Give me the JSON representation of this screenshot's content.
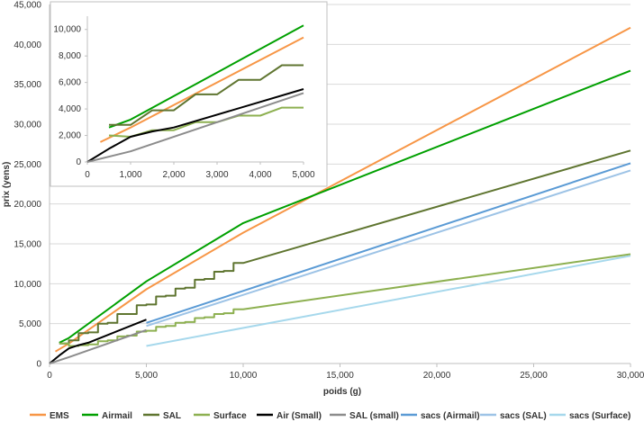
{
  "chart_data": [
    {
      "type": "line",
      "title": "",
      "xlabel": "poids (g)",
      "ylabel": "prix (yens)",
      "xlim": [
        0,
        30000
      ],
      "ylim": [
        0,
        45000
      ],
      "xticks": [
        0,
        5000,
        10000,
        15000,
        20000,
        25000,
        30000
      ],
      "yticks": [
        0,
        5000,
        10000,
        15000,
        20000,
        25000,
        30000,
        35000,
        40000,
        45000
      ],
      "xtick_labels": [
        "0",
        "5,000",
        "10,000",
        "15,000",
        "20,000",
        "25,000",
        "30,000"
      ],
      "ytick_labels": [
        "0",
        "5,000",
        "10,000",
        "15,000",
        "20,000",
        "25,000",
        "30,000",
        "35,000",
        "40,000",
        "45,000"
      ],
      "grid": "horizontal",
      "legend_position": "bottom",
      "series": [
        {
          "name": "EMS",
          "color": "#f79646",
          "points": [
            [
              300,
              1500
            ],
            [
              1000,
              2500
            ],
            [
              5000,
              9300
            ],
            [
              10000,
              16400
            ],
            [
              30000,
              42100
            ]
          ]
        },
        {
          "name": "Airmail",
          "color": "#00a000",
          "points": [
            [
              500,
              2600
            ],
            [
              1000,
              3200
            ],
            [
              5000,
              10300
            ],
            [
              10000,
              17600
            ],
            [
              30000,
              36700
            ]
          ]
        },
        {
          "name": "SAL",
          "color": "#5f7530",
          "points": [
            [
              500,
              2500
            ],
            [
              1000,
              2500
            ],
            [
              1000,
              2900
            ],
            [
              1500,
              2900
            ],
            [
              1500,
              3800
            ],
            [
              2000,
              3800
            ],
            [
              2000,
              3900
            ],
            [
              2500,
              3900
            ],
            [
              2500,
              5000
            ],
            [
              3000,
              5000
            ],
            [
              3000,
              5100
            ],
            [
              3500,
              5100
            ],
            [
              3500,
              6200
            ],
            [
              4000,
              6200
            ],
            [
              4000,
              6200
            ],
            [
              4500,
              6200
            ],
            [
              4500,
              7300
            ],
            [
              5000,
              7300
            ],
            [
              5000,
              7400
            ],
            [
              5500,
              7400
            ],
            [
              5500,
              8400
            ],
            [
              6000,
              8400
            ],
            [
              6000,
              8500
            ],
            [
              6500,
              8500
            ],
            [
              6500,
              9400
            ],
            [
              7000,
              9400
            ],
            [
              7000,
              9500
            ],
            [
              7500,
              9500
            ],
            [
              7500,
              10500
            ],
            [
              8000,
              10500
            ],
            [
              8000,
              10600
            ],
            [
              8500,
              10600
            ],
            [
              8500,
              11500
            ],
            [
              9000,
              11500
            ],
            [
              9000,
              11600
            ],
            [
              9500,
              11600
            ],
            [
              9500,
              12600
            ],
            [
              10000,
              12600
            ],
            [
              30000,
              26700
            ]
          ]
        },
        {
          "name": "Surface",
          "color": "#8db050",
          "points": [
            [
              500,
              2500
            ],
            [
              1000,
              2500
            ],
            [
              1000,
              2200
            ],
            [
              1500,
              2200
            ],
            [
              1500,
              2300
            ],
            [
              2000,
              2300
            ],
            [
              2000,
              2400
            ],
            [
              2500,
              2400
            ],
            [
              2500,
              2800
            ],
            [
              3000,
              2800
            ],
            [
              3000,
              2900
            ],
            [
              3500,
              2900
            ],
            [
              3500,
              3400
            ],
            [
              4000,
              3400
            ],
            [
              4000,
              3500
            ],
            [
              4500,
              3500
            ],
            [
              4500,
              4000
            ],
            [
              5000,
              4000
            ],
            [
              5000,
              4100
            ],
            [
              5500,
              4100
            ],
            [
              5500,
              4600
            ],
            [
              6000,
              4600
            ],
            [
              6000,
              4700
            ],
            [
              6500,
              4700
            ],
            [
              6500,
              5100
            ],
            [
              7000,
              5100
            ],
            [
              7000,
              5200
            ],
            [
              7500,
              5200
            ],
            [
              7500,
              5700
            ],
            [
              8000,
              5700
            ],
            [
              8000,
              5800
            ],
            [
              8500,
              5800
            ],
            [
              8500,
              6200
            ],
            [
              9000,
              6200
            ],
            [
              9000,
              6300
            ],
            [
              9500,
              6300
            ],
            [
              9500,
              6800
            ],
            [
              10000,
              6800
            ],
            [
              30000,
              13700
            ]
          ]
        },
        {
          "name": "Air (Small)",
          "color": "#000000",
          "points": [
            [
              0,
              0
            ],
            [
              500,
              1000
            ],
            [
              1000,
              1900
            ],
            [
              1500,
              2300
            ],
            [
              2000,
              2600
            ],
            [
              5000,
              5500
            ]
          ]
        },
        {
          "name": "SAL (small)",
          "color": "#8c8c8c",
          "points": [
            [
              0,
              0
            ],
            [
              1000,
              800
            ],
            [
              5000,
              4200
            ]
          ]
        },
        {
          "name": "sacs (Airmail)",
          "color": "#5b9bd5",
          "points": [
            [
              5000,
              5100
            ],
            [
              30000,
              25100
            ]
          ]
        },
        {
          "name": "sacs (SAL)",
          "color": "#9dc3e6",
          "points": [
            [
              5000,
              4700
            ],
            [
              30000,
              24200
            ]
          ]
        },
        {
          "name": "sacs (Surface)",
          "color": "#a6d8ec",
          "points": [
            [
              5000,
              2200
            ],
            [
              30000,
              13500
            ]
          ]
        }
      ]
    },
    {
      "type": "line",
      "title": "",
      "xlabel": "",
      "ylabel": "",
      "xlim": [
        0,
        5000
      ],
      "ylim": [
        0,
        11000
      ],
      "xticks": [
        0,
        1000,
        2000,
        3000,
        4000,
        5000
      ],
      "yticks": [
        0,
        2000,
        4000,
        6000,
        8000,
        10000
      ],
      "xtick_labels": [
        "0",
        "1,000",
        "2,000",
        "3,000",
        "4,000",
        "5,000"
      ],
      "ytick_labels": [
        "0",
        "2,000",
        "4,000",
        "6,000",
        "8,000",
        "10,000"
      ],
      "grid": "none",
      "legend_position": "none",
      "series": [
        {
          "name": "EMS",
          "color": "#f79646",
          "points": [
            [
              300,
              1500
            ],
            [
              1000,
              2600
            ],
            [
              5000,
              9400
            ]
          ]
        },
        {
          "name": "Airmail",
          "color": "#00a000",
          "points": [
            [
              500,
              2600
            ],
            [
              1000,
              3200
            ],
            [
              5000,
              10300
            ]
          ]
        },
        {
          "name": "SAL",
          "color": "#5f7530",
          "points": [
            [
              500,
              2800
            ],
            [
              1000,
              2800
            ],
            [
              1500,
              3900
            ],
            [
              2000,
              3900
            ],
            [
              2500,
              5100
            ],
            [
              3000,
              5100
            ],
            [
              3500,
              6200
            ],
            [
              4000,
              6200
            ],
            [
              4500,
              7300
            ],
            [
              5000,
              7300
            ]
          ]
        },
        {
          "name": "Surface",
          "color": "#8db050",
          "points": [
            [
              500,
              2000
            ],
            [
              1000,
              1900
            ],
            [
              1500,
              2400
            ],
            [
              2000,
              2400
            ],
            [
              2500,
              3000
            ],
            [
              3000,
              3000
            ],
            [
              3500,
              3500
            ],
            [
              4000,
              3500
            ],
            [
              4500,
              4100
            ],
            [
              5000,
              4100
            ]
          ]
        },
        {
          "name": "Air (Small)",
          "color": "#000000",
          "points": [
            [
              0,
              0
            ],
            [
              500,
              1000
            ],
            [
              1000,
              1900
            ],
            [
              1500,
              2300
            ],
            [
              2000,
              2600
            ],
            [
              5000,
              5500
            ]
          ]
        },
        {
          "name": "SAL (small)",
          "color": "#8c8c8c",
          "points": [
            [
              0,
              0
            ],
            [
              1000,
              800
            ],
            [
              5000,
              5200
            ]
          ]
        }
      ]
    }
  ]
}
